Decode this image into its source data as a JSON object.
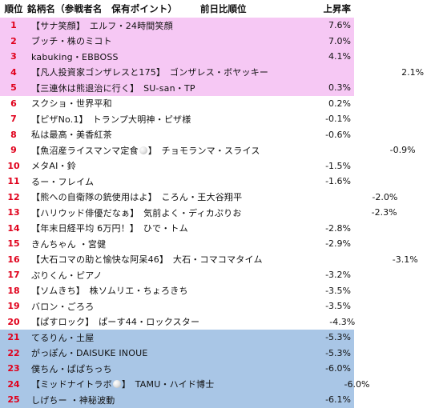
{
  "header": {
    "rank": "順位",
    "name": "銘柄名（参戦者名　保有ポイント）",
    "change": "前日比順位",
    "rate": "上昇率"
  },
  "rows": [
    {
      "rank": "1",
      "name": "【サナ笑顔】　エルフ・24時間笑顔",
      "change": "",
      "rate": "7.6%",
      "band": "pink"
    },
    {
      "rank": "2",
      "name": "ブッチ・株のミコト",
      "change": "",
      "rate": "7.0%",
      "band": "pink"
    },
    {
      "rank": "3",
      "name": "kabuking・EBBOSS",
      "change": "",
      "rate": "4.1%",
      "band": "pink"
    },
    {
      "rank": "4",
      "name": "【凡人投資家ゴンザレスと175】　ゴンザレス・ボヤッキー",
      "change": "",
      "rate": "2.1%",
      "band": "pink"
    },
    {
      "rank": "5",
      "name": "【三連休は熊退治に行く】　SU-san・TP",
      "change": "",
      "rate": "0.3%",
      "band": "pink"
    },
    {
      "rank": "6",
      "name": "スクショ・世界平和",
      "change": "",
      "rate": "0.2%",
      "band": "white"
    },
    {
      "rank": "7",
      "name": "【ピザNo.1】　トランプ大明神・ピザ様",
      "change": "",
      "rate": "-0.1%",
      "band": "white"
    },
    {
      "rank": "8",
      "name": "私は最高・美香紅茶",
      "change": "",
      "rate": "-0.6%",
      "band": "white"
    },
    {
      "rank": "9",
      "name": "【魚沼産ライスマンマ定食",
      "name_tail": "】　チョモランマ・スライス",
      "has_icon": true,
      "change": "",
      "rate": "-0.9%",
      "band": "white"
    },
    {
      "rank": "10",
      "name": "メタAI・鈴",
      "change": "",
      "rate": "-1.5%",
      "band": "white"
    },
    {
      "rank": "11",
      "name": "るー・フレイム",
      "change": "",
      "rate": "-1.6%",
      "band": "white"
    },
    {
      "rank": "12",
      "name": "【熊への自衛隊の銃使用はよ】　ころん・王大谷翔平",
      "change": "",
      "rate": "-2.0%",
      "band": "white"
    },
    {
      "rank": "13",
      "name": "【ハリウッド俳優だなぁ】　気前よく・ディカぷりお",
      "change": "",
      "rate": "-2.3%",
      "band": "white"
    },
    {
      "rank": "14",
      "name": "【年末日経平均 6万円！】　ひで・トム",
      "change": "",
      "rate": "-2.8%",
      "band": "white"
    },
    {
      "rank": "15",
      "name": "きんちゃん ・宮健",
      "change": "",
      "rate": "-2.9%",
      "band": "white"
    },
    {
      "rank": "16",
      "name": "【大石コマの助と愉快な阿呆46】　大石・コマコマタイム",
      "change": "",
      "rate": "-3.1%",
      "band": "white"
    },
    {
      "rank": "17",
      "name": "ぷりくん・ピアノ",
      "change": "",
      "rate": "-3.2%",
      "band": "white"
    },
    {
      "rank": "18",
      "name": "【ソムきち】　株ソムリエ・ちょろきち",
      "change": "",
      "rate": "-3.5%",
      "band": "white"
    },
    {
      "rank": "19",
      "name": "バロン・ごろろ",
      "change": "",
      "rate": "-3.5%",
      "band": "white"
    },
    {
      "rank": "20",
      "name": "【ぱすロック】　ぱーす44・ロックスター",
      "change": "",
      "rate": "-4.3%",
      "band": "white"
    },
    {
      "rank": "21",
      "name": "てるりん・土屋",
      "change": "",
      "rate": "-5.3%",
      "band": "blue"
    },
    {
      "rank": "22",
      "name": "がっぽん・DAISUKE INOUE",
      "change": "",
      "rate": "-5.3%",
      "band": "blue"
    },
    {
      "rank": "23",
      "name": "僕ちん・ぱぱちっち",
      "change": "",
      "rate": "-6.0%",
      "band": "blue"
    },
    {
      "rank": "24",
      "name": "【ミッドナイトラボ",
      "name_tail": "】　TAMU・ハイド博士",
      "has_icon": true,
      "change": "",
      "rate": "-6.0%",
      "band": "blue"
    },
    {
      "rank": "25",
      "name": "しげちー ・神秘波動",
      "change": "",
      "rate": "-6.1%",
      "band": "blue"
    }
  ]
}
